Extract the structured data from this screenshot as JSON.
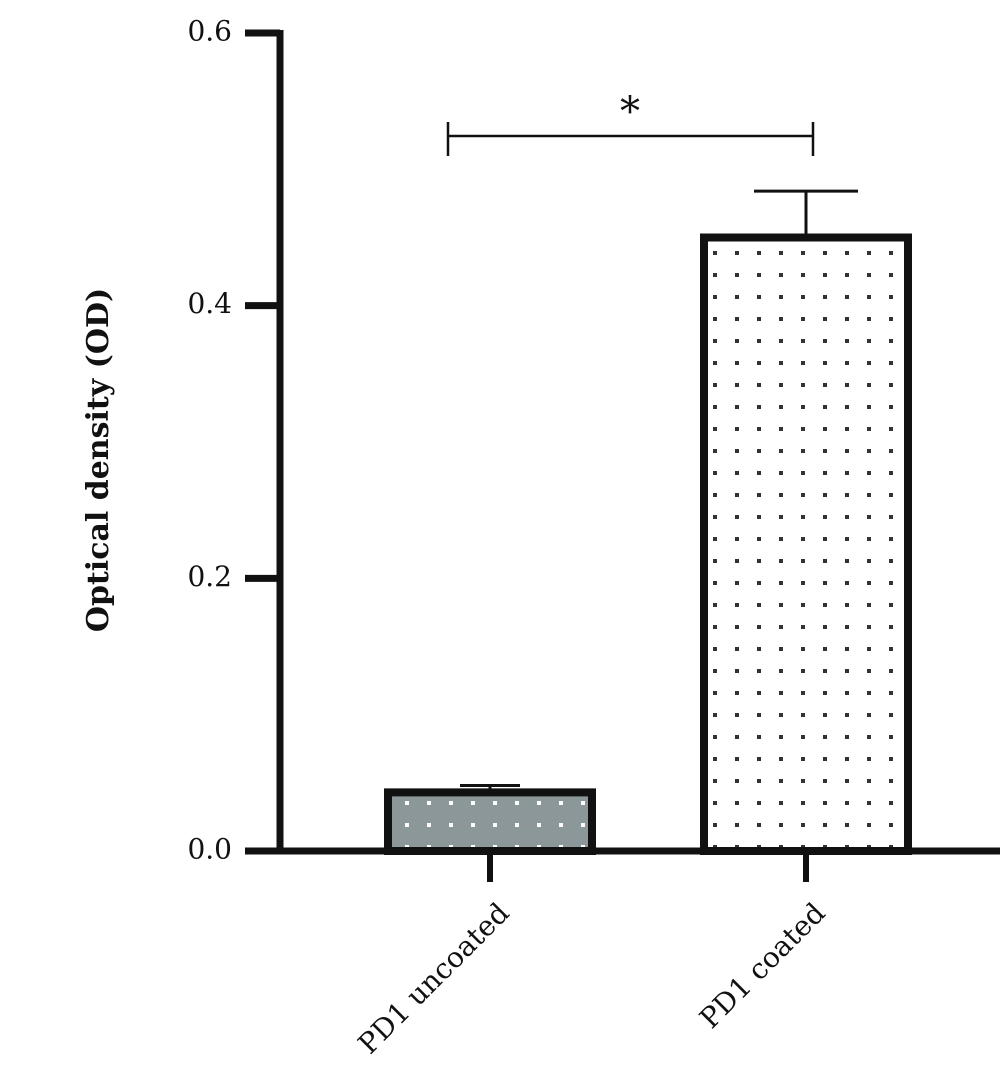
{
  "chart_data": {
    "type": "bar",
    "y_label": "Optical density (OD)",
    "annotation": "*",
    "categories": [
      "PD1 uncoated",
      "PD1 coated"
    ],
    "values": [
      0.043,
      0.45
    ],
    "errors": [
      0.005,
      0.034
    ],
    "colors": [
      "#8c9799",
      "#ffffff"
    ],
    "ylim": [
      0,
      0.6
    ],
    "yticks": [
      {
        "value": 0,
        "label": "0.0"
      },
      0.2,
      0.4,
      0.6
    ]
  }
}
